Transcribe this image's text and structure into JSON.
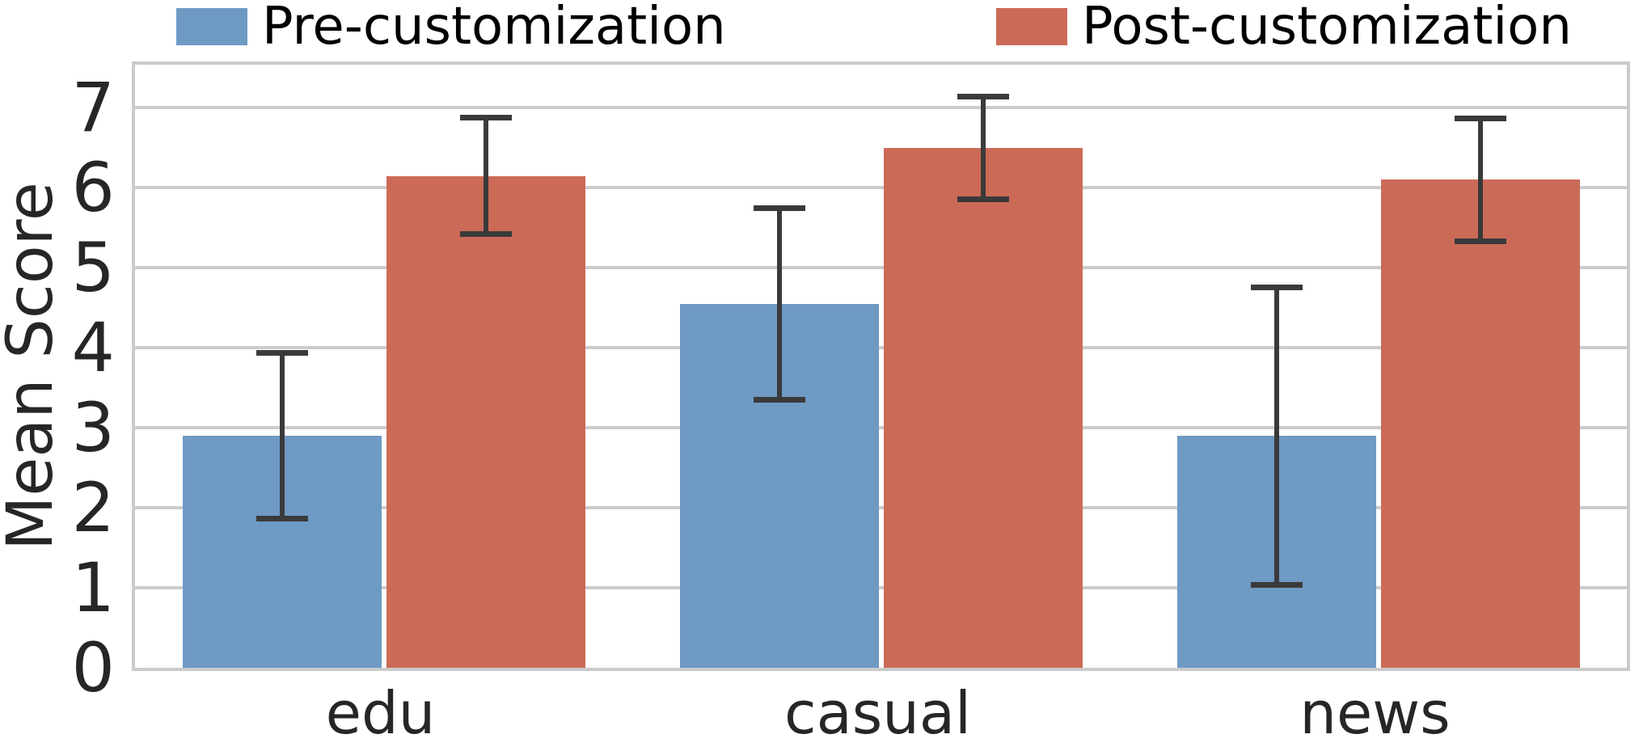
{
  "chart_data": {
    "type": "bar",
    "title": "",
    "categories": [
      "edu",
      "casual",
      "news"
    ],
    "series": [
      {
        "name": "Pre-customization",
        "color": "#6f9ac4",
        "values": [
          2.9,
          4.55,
          2.9
        ],
        "errors": [
          1.04,
          1.2,
          1.86
        ]
      },
      {
        "name": "Post-customization",
        "color": "#cc6a58",
        "values": [
          6.15,
          6.5,
          6.1
        ],
        "errors": [
          0.73,
          0.64,
          0.77
        ]
      }
    ],
    "xlabel": "",
    "ylabel": "Mean Score",
    "yticks": [
      0,
      1,
      2,
      3,
      4,
      5,
      6,
      7
    ],
    "ylim": [
      0,
      7.54
    ],
    "grid": true,
    "legend_position": "top",
    "error_bar_color": "#3a3a3a",
    "grid_color": "#cccccc",
    "spine_color": "#cbcbcb",
    "tick_color": "#262626"
  },
  "legend": {
    "items": [
      {
        "label": "Pre-customization",
        "color": "#6f9ac4"
      },
      {
        "label": "Post-customization",
        "color": "#cc6a58"
      }
    ]
  }
}
